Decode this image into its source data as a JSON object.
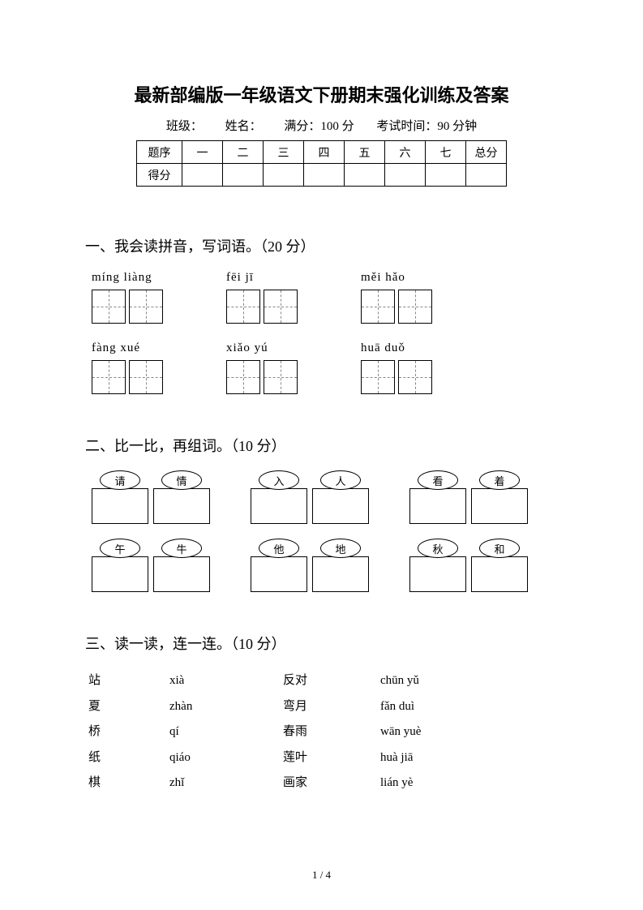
{
  "title": "最新部编版一年级语文下册期末强化训练及答案",
  "info": {
    "class_label": "班级：",
    "name_label": "姓名：",
    "full_score": "满分：100 分",
    "time": "考试时间：90 分钟"
  },
  "score_table": {
    "row1_label": "题序",
    "headers": [
      "一",
      "二",
      "三",
      "四",
      "五",
      "六",
      "七",
      "总分"
    ],
    "row2_label": "得分"
  },
  "section1": {
    "title": "一、我会读拼音，写词语。（20 分）",
    "row1": [
      {
        "pinyin": "míng liàng"
      },
      {
        "pinyin": "fēi   jī"
      },
      {
        "pinyin": "měi   hǎo"
      }
    ],
    "row2": [
      {
        "pinyin": "fàng   xué"
      },
      {
        "pinyin": "xiǎo   yú"
      },
      {
        "pinyin": "huā   duǒ"
      }
    ]
  },
  "section2": {
    "title": "二、比一比，再组词。（10 分）",
    "row1": [
      {
        "a": "请",
        "b": "情"
      },
      {
        "a": "入",
        "b": "人"
      },
      {
        "a": "看",
        "b": "着"
      }
    ],
    "row2": [
      {
        "a": "午",
        "b": "牛"
      },
      {
        "a": "他",
        "b": "地"
      },
      {
        "a": "秋",
        "b": "和"
      }
    ]
  },
  "section3": {
    "title": "三、读一读，连一连。（10 分）",
    "rows": [
      {
        "c1": "站",
        "c2": "xià",
        "c3": "反对",
        "c4": "chūn yǔ"
      },
      {
        "c1": "夏",
        "c2": "zhàn",
        "c3": "弯月",
        "c4": "fǎn duì"
      },
      {
        "c1": "桥",
        "c2": "qí",
        "c3": "春雨",
        "c4": "wān yuè"
      },
      {
        "c1": "纸",
        "c2": "qiáo",
        "c3": "莲叶",
        "c4": "huà jiā"
      },
      {
        "c1": "棋",
        "c2": "zhǐ",
        "c3": "画家",
        "c4": "lián yè"
      }
    ]
  },
  "page_number": "1 / 4"
}
